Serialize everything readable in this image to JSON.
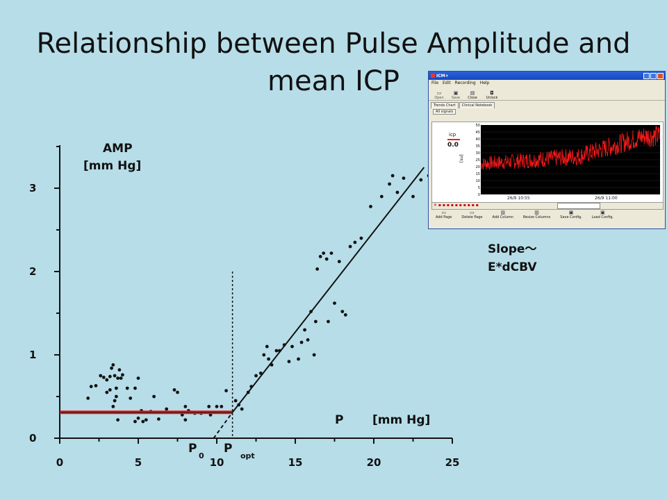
{
  "slide": {
    "title_line1": "Relationship between Pulse Amplitude and",
    "title_line2": "mean ICP",
    "slope_line1": "Slope～",
    "slope_line2": "E*dCBV"
  },
  "colors": {
    "background": "#b7dde8",
    "red_line": "#e41a1a",
    "axis": "#111111"
  },
  "chart_data": {
    "type": "scatter",
    "ylabel_line1": "AMP",
    "ylabel_line2": "[mm Hg]",
    "xlabel_symbol": "P",
    "xlabel_unit": "[mm Hg]",
    "xlim": [
      0,
      25
    ],
    "ylim": [
      0,
      3.5
    ],
    "xticks": [
      0,
      5,
      10,
      15,
      20,
      25
    ],
    "yticks": [
      0,
      1,
      2,
      3
    ],
    "p0_label": "P",
    "p0_sub": "0",
    "popt_label": "P",
    "popt_sub": "opt",
    "p0": 9.8,
    "popt": 11.0,
    "plateau": 0.31,
    "fit_line": {
      "x1": 11.0,
      "y1": 0.31,
      "x2": 23.2,
      "y2": 3.25
    },
    "extrapolation": {
      "x1": 9.8,
      "y1": 0.0,
      "x2": 11.0,
      "y2": 0.31
    },
    "points": [
      [
        1.8,
        0.48
      ],
      [
        2.0,
        0.62
      ],
      [
        2.3,
        0.63
      ],
      [
        2.6,
        0.75
      ],
      [
        2.8,
        0.73
      ],
      [
        3.0,
        0.7
      ],
      [
        3.2,
        0.58
      ],
      [
        3.3,
        0.84
      ],
      [
        3.4,
        0.88
      ],
      [
        3.5,
        0.75
      ],
      [
        3.6,
        0.6
      ],
      [
        3.7,
        0.72
      ],
      [
        3.8,
        0.82
      ],
      [
        3.2,
        0.74
      ],
      [
        3.0,
        0.55
      ],
      [
        3.5,
        0.45
      ],
      [
        3.6,
        0.5
      ],
      [
        3.9,
        0.72
      ],
      [
        4.0,
        0.76
      ],
      [
        4.3,
        0.6
      ],
      [
        4.5,
        0.48
      ],
      [
        4.8,
        0.6
      ],
      [
        5.0,
        0.72
      ],
      [
        3.7,
        0.22
      ],
      [
        3.4,
        0.38
      ],
      [
        4.8,
        0.2
      ],
      [
        5.0,
        0.24
      ],
      [
        5.3,
        0.2
      ],
      [
        5.5,
        0.22
      ],
      [
        5.8,
        0.32
      ],
      [
        6.0,
        0.5
      ],
      [
        5.2,
        0.33
      ],
      [
        6.3,
        0.23
      ],
      [
        6.8,
        0.35
      ],
      [
        7.3,
        0.58
      ],
      [
        7.5,
        0.55
      ],
      [
        7.8,
        0.28
      ],
      [
        8.0,
        0.22
      ],
      [
        8.0,
        0.38
      ],
      [
        8.2,
        0.33
      ],
      [
        8.6,
        0.3
      ],
      [
        9.0,
        0.3
      ],
      [
        9.5,
        0.38
      ],
      [
        9.6,
        0.28
      ],
      [
        10.0,
        0.38
      ],
      [
        10.3,
        0.38
      ],
      [
        10.6,
        0.57
      ],
      [
        11.2,
        0.45
      ],
      [
        11.4,
        0.4
      ],
      [
        11.6,
        0.35
      ],
      [
        12.0,
        0.55
      ],
      [
        12.2,
        0.62
      ],
      [
        12.5,
        0.75
      ],
      [
        12.8,
        0.78
      ],
      [
        13.0,
        1.0
      ],
      [
        13.2,
        1.1
      ],
      [
        13.3,
        0.95
      ],
      [
        13.5,
        0.88
      ],
      [
        13.8,
        1.05
      ],
      [
        14.0,
        1.05
      ],
      [
        14.3,
        1.12
      ],
      [
        14.6,
        0.92
      ],
      [
        14.8,
        1.1
      ],
      [
        15.2,
        0.95
      ],
      [
        15.4,
        1.15
      ],
      [
        15.6,
        1.3
      ],
      [
        15.8,
        1.18
      ],
      [
        16.0,
        1.52
      ],
      [
        16.3,
        1.4
      ],
      [
        16.2,
        1.0
      ],
      [
        16.4,
        2.03
      ],
      [
        16.6,
        2.18
      ],
      [
        16.8,
        2.22
      ],
      [
        17.0,
        2.15
      ],
      [
        17.1,
        1.4
      ],
      [
        17.3,
        2.22
      ],
      [
        17.5,
        1.62
      ],
      [
        17.8,
        2.12
      ],
      [
        18.0,
        1.52
      ],
      [
        18.2,
        1.48
      ],
      [
        18.5,
        2.3
      ],
      [
        18.8,
        2.35
      ],
      [
        19.2,
        2.4
      ],
      [
        19.8,
        2.78
      ],
      [
        20.5,
        2.9
      ],
      [
        21.0,
        3.05
      ],
      [
        21.2,
        3.15
      ],
      [
        21.5,
        2.95
      ],
      [
        21.9,
        3.12
      ],
      [
        22.5,
        2.9
      ],
      [
        23.0,
        3.1
      ],
      [
        23.5,
        3.15
      ]
    ]
  },
  "app": {
    "title": "ICM+",
    "menu": [
      "File",
      "Edit",
      "Recording",
      "Help"
    ],
    "toolbar": [
      "Open",
      "Save",
      "Close",
      "Unlock"
    ],
    "tabs": [
      "Trends Chart",
      "Clinical Notebook"
    ],
    "subtab": "All signals",
    "signal_name": "icp",
    "signal_value": "0.0",
    "axis_unit": "[su]",
    "yticks": [
      "50",
      "45",
      "40",
      "35",
      "30",
      "25",
      "20",
      "15",
      "10",
      "5",
      "0"
    ],
    "xtick1": "26/9 10:55",
    "xtick2": "26/9 11:00",
    "bottom_buttons": [
      "Add Page",
      "Delete Page",
      "Add Column",
      "Resize Columns",
      "Save Config.",
      "Load Config."
    ]
  }
}
